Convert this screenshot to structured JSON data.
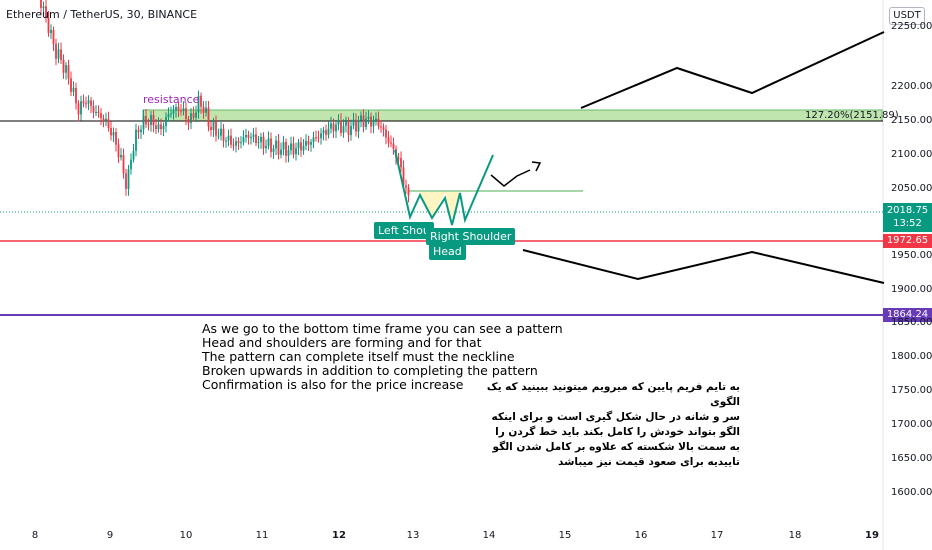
{
  "header": {
    "symbol": "Ethereum / TetherUS, 30, BINANCE",
    "currency_button": "USDT"
  },
  "chart_data": {
    "type": "candlestick",
    "y_ticks": [
      "2250.00",
      "2200.00",
      "2150.00",
      "2100.00",
      "2050.00",
      "1950.00",
      "1900.00",
      "1850.00",
      "1800.00",
      "1750.00",
      "1700.00",
      "1650.00",
      "1600.00"
    ],
    "x_ticks": [
      "8",
      "9",
      "10",
      "11",
      "12",
      "13",
      "14",
      "15",
      "16",
      "17",
      "18",
      "19"
    ],
    "ylim": [
      1570,
      2300
    ],
    "current_price": {
      "value": "2018.75",
      "countdown": "13:52",
      "color": "#089981"
    },
    "levels": [
      {
        "label": "1972.65",
        "value": 1972.65,
        "color": "#f23645"
      },
      {
        "label": "1864.24",
        "value": 1864.24,
        "color": "#673ab7"
      }
    ],
    "resistance_label": "resistance",
    "fib_label": "127.20%(2151.89)",
    "patterns": {
      "left_shoulder": "Left Shou",
      "right_shoulder": "Right Shoulder",
      "head": "Head"
    }
  },
  "annotations": {
    "english": [
      "As we go to the bottom time frame you can see a pattern",
      "Head and shoulders are forming and for that",
      "The pattern can complete itself must the neckline",
      "Broken upwards in addition to completing the pattern",
      "Confirmation is also for the price increase"
    ],
    "persian": [
      "به تایم فریم پایین که میرویم میتونید ببینید که یک الگوی",
      "سر و شانه در حال شکل گیری است و برای اینکه",
      "الگو بتواند خودش را کامل بکند باید خط گردن را",
      "به سمت بالا شکسته که علاوه بر کامل شدن الگو",
      "تاییدیه برای صعود قیمت نیز میباشد"
    ]
  }
}
